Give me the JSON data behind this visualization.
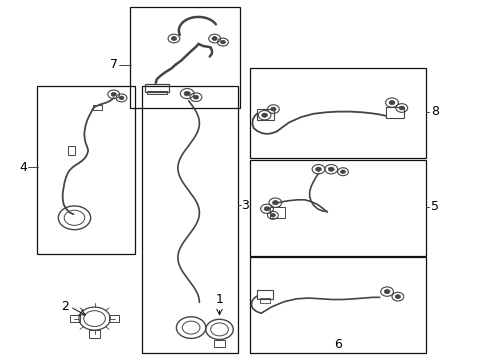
{
  "bg_color": "#ffffff",
  "line_color": "#444444",
  "box_color": "#111111",
  "label_color": "#000000",
  "fig_w": 4.9,
  "fig_h": 3.6,
  "dpi": 100,
  "boxes": {
    "7": [
      0.265,
      0.7,
      0.49,
      0.98
    ],
    "4": [
      0.075,
      0.295,
      0.275,
      0.76
    ],
    "3": [
      0.29,
      0.02,
      0.485,
      0.76
    ],
    "8": [
      0.51,
      0.56,
      0.87,
      0.81
    ],
    "5": [
      0.51,
      0.29,
      0.87,
      0.555
    ],
    "6": [
      0.51,
      0.02,
      0.87,
      0.285
    ]
  },
  "label_positions": {
    "7": [
      0.24,
      0.82,
      "right"
    ],
    "4": [
      0.055,
      0.535,
      "right"
    ],
    "3": [
      0.49,
      0.43,
      "left"
    ],
    "8": [
      0.88,
      0.69,
      "left"
    ],
    "5": [
      0.88,
      0.43,
      "left"
    ],
    "6": [
      0.69,
      0.025,
      "center"
    ],
    "2": [
      0.14,
      0.148,
      "right"
    ],
    "1": [
      0.44,
      0.148,
      "right"
    ]
  }
}
